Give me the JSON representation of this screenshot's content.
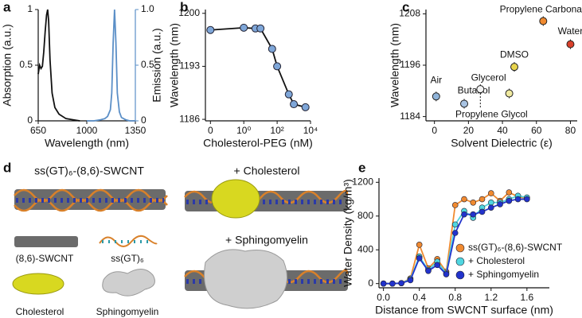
{
  "chart_data": [
    {
      "type": "line",
      "panel_label": "a",
      "xlabel": "Wavelength (nm)",
      "ylabel": "Absorption (a.u.)",
      "y2label": "Emission (a.u.)",
      "xlim": [
        650,
        1350
      ],
      "xticks": [
        650,
        1000,
        1350
      ],
      "ylim": [
        0,
        1
      ],
      "yticks": [
        0,
        0.5,
        1
      ],
      "y2lim": [
        0,
        1
      ],
      "y2ticks": [
        0,
        0.5,
        {
          "value": 1,
          "label": "1.0"
        }
      ],
      "series": [
        {
          "color": "#111111",
          "x": [
            650,
            660,
            670,
            680,
            690,
            700,
            710,
            718,
            725,
            735,
            750,
            770,
            800,
            850,
            900,
            950
          ],
          "values": [
            0.42,
            0.5,
            0.47,
            0.49,
            0.62,
            0.8,
            0.95,
            1.0,
            0.9,
            0.55,
            0.25,
            0.12,
            0.06,
            0.02,
            0.01,
            0
          ]
        },
        {
          "color": "#5b8fc7",
          "axis": "y2",
          "x": [
            1000,
            1050,
            1100,
            1130,
            1150,
            1170,
            1180,
            1190,
            1200,
            1210,
            1220,
            1235,
            1250,
            1280,
            1310,
            1350
          ],
          "values": [
            0,
            0,
            0.01,
            0.02,
            0.04,
            0.1,
            0.25,
            0.7,
            1.0,
            0.7,
            0.25,
            0.08,
            0.03,
            0.01,
            0,
            0
          ]
        }
      ]
    },
    {
      "type": "line",
      "panel_label": "b",
      "xlabel": "Cholesterol-PEG (nM)",
      "ylabel": "Wavelength (nm)",
      "xlog": true,
      "markers": true,
      "xlim": [
        0.005,
        10000
      ],
      "xticks": [
        {
          "value": 0.01,
          "label": "0"
        },
        {
          "value": 1,
          "label": "10⁰"
        },
        {
          "value": 100,
          "label": "10²"
        },
        {
          "value": 10000,
          "label": "10⁴"
        }
      ],
      "ylim": [
        1185.8,
        1200.5
      ],
      "yticks": [
        1186,
        1193,
        1200
      ],
      "series": [
        {
          "color": "#7ea6d8",
          "x": [
            0.01,
            1,
            5,
            10,
            50,
            100,
            500,
            1000,
            5000
          ],
          "values": [
            1197.8,
            1198.1,
            1198.0,
            1198.0,
            1195.3,
            1193.0,
            1189.3,
            1188.0,
            1187.6
          ]
        }
      ]
    },
    {
      "type": "scatter",
      "panel_label": "c",
      "xlabel": "Solvent Dielectric (ε)",
      "ylabel": "Wavelength (nm)",
      "xlim": [
        -5,
        84
      ],
      "xticks": [
        0,
        20,
        40,
        60,
        80
      ],
      "ylim": [
        1183,
        1209
      ],
      "yticks": [
        1184,
        1196,
        1208
      ],
      "labels": [
        "Air",
        "Butanol",
        "Propylene Glycol",
        "Glycerol",
        "DMSO",
        "Propylene Carbonate",
        "Water"
      ],
      "x": [
        1,
        17.5,
        27,
        44,
        47,
        64,
        80
      ],
      "values": [
        1188.7,
        1187.0,
        1190.4,
        1189.4,
        1195.6,
        1206.3,
        1200.9
      ],
      "colors": [
        "#8fb3d9",
        "#a9c4e3",
        "#f2f2f2",
        "#f0eaa0",
        "#e8d44d",
        "#f08a30",
        "#d9402b"
      ]
    },
    {
      "type": "line",
      "panel_label": "e",
      "xlabel": "Distance from SWCNT surface (nm)",
      "ylabel": "Water Density (kg/m³)",
      "markers": true,
      "legend": "lower-right",
      "xlim": [
        -0.05,
        1.85
      ],
      "xticks": [
        {
          "value": 0,
          "label": "0.0"
        },
        0.4,
        0.8,
        1.2,
        1.6
      ],
      "ylim": [
        -50,
        1250
      ],
      "yticks": [
        0,
        400,
        800,
        1200
      ],
      "x": [
        0,
        0.1,
        0.2,
        0.3,
        0.4,
        0.5,
        0.6,
        0.7,
        0.8,
        0.9,
        1.0,
        1.1,
        1.2,
        1.3,
        1.4,
        1.5,
        1.6
      ],
      "series": [
        {
          "name": "ss(GT)₆-(8,6)-SWCNT",
          "color": "#f08a30",
          "values": [
            0,
            0,
            5,
            60,
            460,
            180,
            290,
            140,
            930,
            1000,
            960,
            1000,
            1070,
            980,
            1080,
            1030,
            1010
          ]
        },
        {
          "name": "+ Cholesterol",
          "color": "#4fd6e0",
          "values": [
            0,
            0,
            5,
            50,
            320,
            160,
            260,
            120,
            700,
            860,
            780,
            900,
            960,
            960,
            1000,
            1040,
            1020
          ]
        },
        {
          "name": "+ Sphingomyelin",
          "color": "#2233cc",
          "values": [
            0,
            0,
            5,
            40,
            300,
            150,
            220,
            110,
            600,
            820,
            820,
            850,
            900,
            940,
            980,
            1000,
            1000
          ]
        }
      ]
    }
  ],
  "illustration": {
    "panel_label": "d",
    "complex": "ss(GT)₆-(8,6)-SWCNT",
    "with_cholesterol": "+ Cholesterol",
    "with_sphingomyelin": "+ Sphingomyelin",
    "swcnt": "(8,6)-SWCNT",
    "dna": "ss(GT)₆",
    "cholesterol": "Cholesterol",
    "sphingomyelin": "Sphingomyelin"
  }
}
